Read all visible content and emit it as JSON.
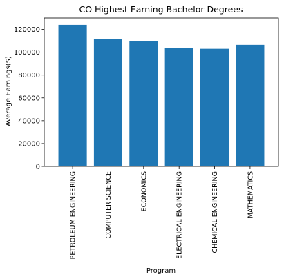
{
  "chart_data": {
    "type": "bar",
    "title": "CO Highest Earning Bachelor Degrees",
    "xlabel": "Program",
    "ylabel": "Average Earnings($)",
    "categories": [
      "PETROLEUM ENGINEERING",
      "COMPUTER SCIENCE",
      "ECONOMICS",
      "ELECTRICAL  ENGINEERING",
      "CHEMICAL ENGINEERING",
      "MATHEMATICS"
    ],
    "values": [
      124000,
      111500,
      109500,
      103500,
      103000,
      106500
    ],
    "yticks": [
      "0",
      "20000",
      "40000",
      "60000",
      "80000",
      "100000",
      "120000"
    ],
    "ylim": [
      0,
      130000
    ],
    "bar_color": "#1f77b4",
    "grid": false,
    "legend": "none"
  }
}
